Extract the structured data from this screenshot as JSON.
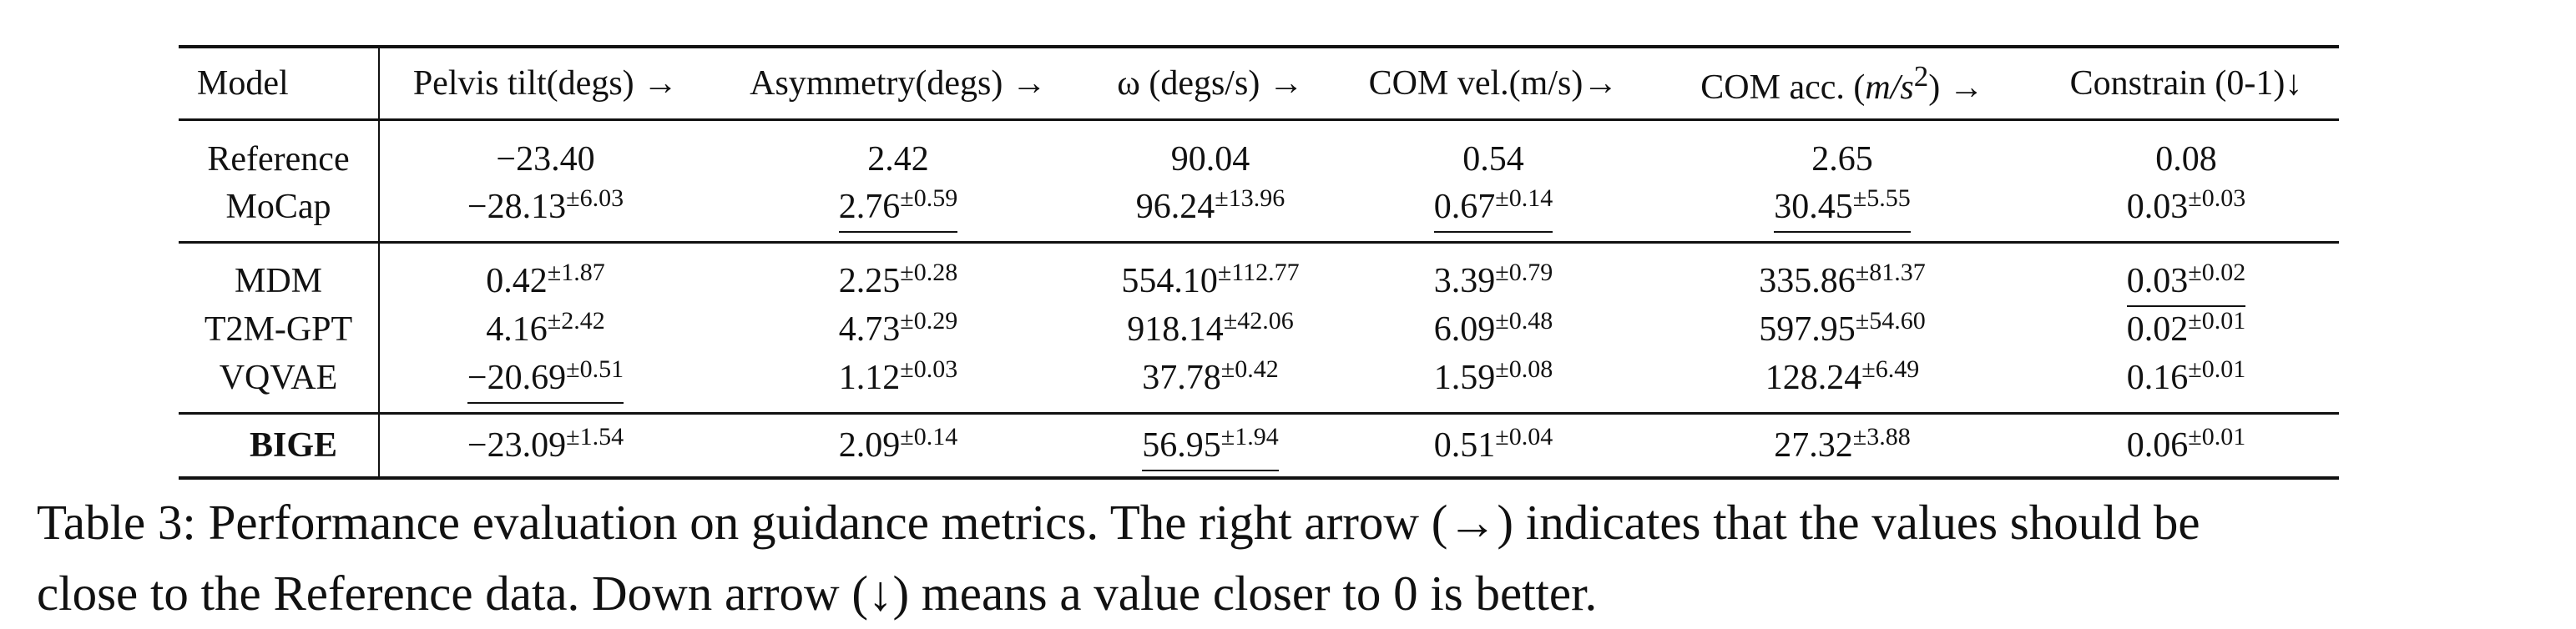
{
  "table": {
    "headers": {
      "model": "Model",
      "pelvis": "Pelvis tilt(degs) →",
      "asym": "Asymmetry(degs) →",
      "omega": "ω (degs/s) →",
      "comv": "COM vel.(m/s)→",
      "coma_pre": "COM acc. (",
      "coma_unit": "m/s",
      "coma_exp": "2",
      "coma_post": ") →",
      "cons": "Constrain (0-1)↓"
    },
    "rows": {
      "reference": {
        "model": "Reference",
        "pelvis": "−23.40",
        "asym": "2.42",
        "omega": "90.04",
        "comv": "0.54",
        "coma": "2.65",
        "cons": "0.08"
      },
      "mocap": {
        "model": "MoCap",
        "pelvis": "−28.13",
        "pelvis_sd": "±6.03",
        "asym": "2.76",
        "asym_sd": "±0.59",
        "omega": "96.24",
        "omega_sd": "±13.96",
        "comv": "0.67",
        "comv_sd": "±0.14",
        "coma": "30.45",
        "coma_sd": "±5.55",
        "cons": "0.03",
        "cons_sd": "±0.03"
      },
      "mdm": {
        "model": "MDM",
        "pelvis": "0.42",
        "pelvis_sd": "±1.87",
        "asym": "2.25",
        "asym_sd": "±0.28",
        "omega": "554.10",
        "omega_sd": "±112.77",
        "comv": "3.39",
        "comv_sd": "±0.79",
        "coma": "335.86",
        "coma_sd": "±81.37",
        "cons": "0.03",
        "cons_sd": "±0.02"
      },
      "t2m": {
        "model": "T2M-GPT",
        "pelvis": "4.16",
        "pelvis_sd": "±2.42",
        "asym": "4.73",
        "asym_sd": "±0.29",
        "omega": "918.14",
        "omega_sd": "±42.06",
        "comv": "6.09",
        "comv_sd": "±0.48",
        "coma": "597.95",
        "coma_sd": "±54.60",
        "cons": "0.02",
        "cons_sd": "±0.01"
      },
      "vqvae": {
        "model": "VQVAE",
        "pelvis": "−20.69",
        "pelvis_sd": "±0.51",
        "asym": "1.12",
        "asym_sd": "±0.03",
        "omega": "37.78",
        "omega_sd": "±0.42",
        "comv": "1.59",
        "comv_sd": "±0.08",
        "coma": "128.24",
        "coma_sd": "±6.49",
        "cons": "0.16",
        "cons_sd": "±0.01"
      },
      "bige": {
        "model": "BIGE",
        "pelvis": "−23.09",
        "pelvis_sd": "±1.54",
        "asym": "2.09",
        "asym_sd": "±0.14",
        "omega": "56.95",
        "omega_sd": "±1.94",
        "comv": "0.51",
        "comv_sd": "±0.04",
        "coma": "27.32",
        "coma_sd": "±3.88",
        "cons": "0.06",
        "cons_sd": "±0.01"
      }
    }
  },
  "caption": {
    "line1": "Table 3: Performance evaluation on guidance metrics. The right arrow (→) indicates that the values should be",
    "line2": "close to the Reference data. Down arrow (↓) means a value closer to 0 is better."
  }
}
